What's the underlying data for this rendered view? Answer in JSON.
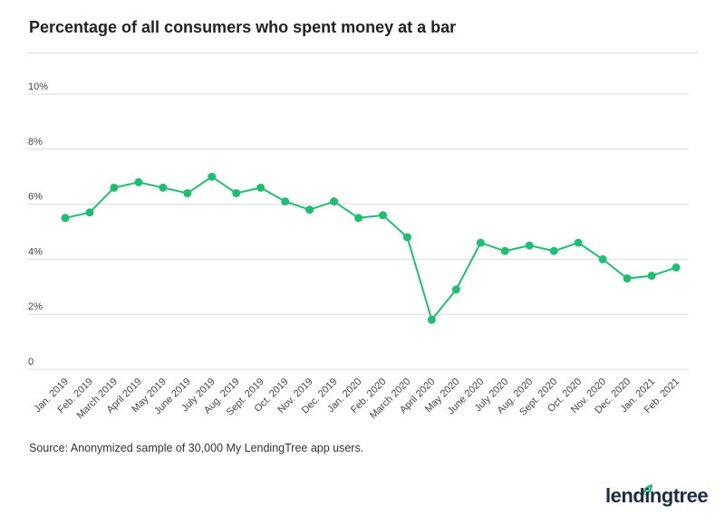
{
  "title": "Percentage of all consumers who spent money at a bar",
  "source": "Source: Anonymized sample of 30,000 My LendingTree app users.",
  "logo": "lendingtree",
  "colors": {
    "line": "#1fbf73",
    "grid": "#dddddd",
    "text": "#444444"
  },
  "chart_data": {
    "type": "line",
    "title": "Percentage of all consumers who spent money at a bar",
    "categories": [
      "Jan. 2019",
      "Feb. 2019",
      "March 2019",
      "April 2019",
      "May 2019",
      "June 2019",
      "July 2019",
      "Aug. 2019",
      "Sept. 2019",
      "Oct. 2019",
      "Nov. 2019",
      "Dec. 2019",
      "Jan. 2020",
      "Feb. 2020",
      "March 2020",
      "April 2020",
      "May 2020",
      "June 2020",
      "July 2020",
      "Aug. 2020",
      "Sept. 2020",
      "Oct. 2020",
      "Nov. 2020",
      "Dec. 2020",
      "Jan. 2021",
      "Feb. 2021"
    ],
    "values": [
      5.5,
      5.7,
      6.6,
      6.8,
      6.6,
      6.4,
      7.0,
      6.4,
      6.6,
      6.1,
      5.8,
      6.1,
      5.5,
      5.6,
      4.8,
      1.8,
      2.9,
      4.6,
      4.3,
      4.5,
      4.3,
      4.6,
      4.0,
      3.3,
      3.4,
      3.7
    ],
    "ylim": [
      0,
      10
    ],
    "yticks": [
      0,
      2,
      4,
      6,
      8,
      10
    ],
    "ytick_labels": [
      "0",
      "2%",
      "4%",
      "6%",
      "8%",
      "10%"
    ],
    "grid": true,
    "xlabel": "",
    "ylabel": ""
  }
}
